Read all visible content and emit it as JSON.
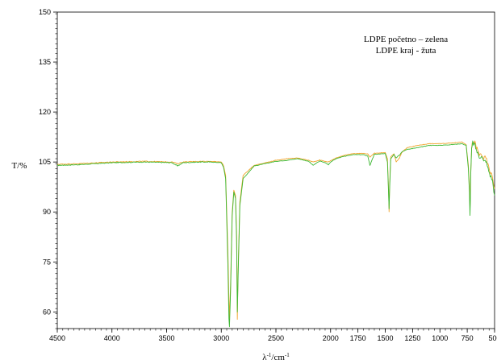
{
  "chart_data": {
    "type": "line",
    "title": "",
    "xlabel": "λ-1/cm-1",
    "xlabel_base": "λ",
    "xlabel_sup1": "-1",
    "xlabel_mid": "/cm",
    "xlabel_sup2": "-1",
    "ylabel": "T/%",
    "x_reversed": true,
    "xlim": [
      4500,
      500
    ],
    "ylim": [
      55,
      150
    ],
    "xticks": [
      4500,
      4000,
      3500,
      3000,
      2500,
      2000,
      1750,
      1500,
      1250,
      1000,
      750,
      500
    ],
    "yticks": [
      60,
      75,
      90,
      105,
      120,
      135,
      150
    ],
    "grid": false,
    "legend": [
      "LDPE početno – zelena",
      "LDPE kraj - žuta"
    ],
    "legend_position": "top-right",
    "series": [
      {
        "color": "#3cb832",
        "x": [
          4500,
          4300,
          4000,
          3700,
          3450,
          3400,
          3350,
          3200,
          3100,
          3000,
          2980,
          2960,
          2940,
          2930,
          2925,
          2915,
          2900,
          2885,
          2870,
          2860,
          2853,
          2845,
          2830,
          2800,
          2700,
          2500,
          2400,
          2300,
          2200,
          2160,
          2100,
          2050,
          2020,
          2000,
          1950,
          1900,
          1800,
          1700,
          1660,
          1640,
          1600,
          1500,
          1480,
          1470,
          1465,
          1460,
          1450,
          1420,
          1400,
          1380,
          1370,
          1350,
          1300,
          1200,
          1100,
          1000,
          900,
          800,
          760,
          740,
          730,
          725,
          722,
          718,
          710,
          700,
          680,
          660,
          640,
          620,
          600,
          580,
          560,
          540,
          520,
          500
        ],
        "y": [
          104,
          104.2,
          104.8,
          105,
          104.8,
          103.8,
          104.8,
          105,
          105,
          104.8,
          103.5,
          100,
          75,
          58,
          55.5,
          66,
          89,
          96,
          94,
          82,
          60,
          72,
          92,
          100,
          103.8,
          105.2,
          105.5,
          106,
          105.2,
          104,
          105.3,
          104.8,
          104.2,
          105,
          106,
          106.5,
          107.2,
          107.2,
          106.8,
          104,
          107.3,
          107.5,
          105,
          96,
          91,
          97,
          106,
          107.3,
          106.2,
          107,
          107,
          108,
          108.8,
          109.3,
          110,
          110,
          110.2,
          110.5,
          110,
          103,
          96,
          89,
          93,
          101,
          108.5,
          110.8,
          110,
          108,
          106.5,
          107,
          105,
          105.5,
          103,
          101,
          99.5,
          95
        ]
      },
      {
        "color": "#f0a52d",
        "x": [
          4500,
          4300,
          4000,
          3700,
          3450,
          3400,
          3350,
          3200,
          3100,
          3000,
          2980,
          2960,
          2940,
          2930,
          2925,
          2915,
          2900,
          2885,
          2870,
          2860,
          2853,
          2845,
          2830,
          2800,
          2700,
          2500,
          2400,
          2300,
          2200,
          2160,
          2100,
          2050,
          2020,
          2000,
          1950,
          1900,
          1800,
          1700,
          1660,
          1640,
          1600,
          1500,
          1480,
          1470,
          1465,
          1460,
          1450,
          1420,
          1400,
          1380,
          1370,
          1350,
          1300,
          1200,
          1100,
          1000,
          900,
          800,
          760,
          740,
          730,
          725,
          722,
          718,
          710,
          700,
          680,
          660,
          640,
          620,
          600,
          580,
          560,
          540,
          520,
          500
        ],
        "y": [
          104.3,
          104.5,
          105,
          105.2,
          105,
          104.5,
          105,
          105.2,
          105.2,
          105,
          104,
          101,
          79,
          64,
          58,
          68,
          90,
          96.5,
          95,
          84,
          57.8,
          74,
          93,
          101,
          104,
          105.5,
          106,
          106.2,
          105.5,
          105,
          105.6,
          105.2,
          105,
          105.4,
          106.2,
          106.8,
          107.5,
          107.6,
          107.4,
          106.5,
          107.6,
          107.8,
          106,
          97,
          90,
          98,
          106.5,
          107.5,
          105,
          105.8,
          106.2,
          107.8,
          109.3,
          110,
          110.5,
          110.5,
          110.7,
          111,
          110.2,
          104,
          97.5,
          91,
          94,
          102,
          109,
          111.2,
          110.8,
          109,
          107,
          107.5,
          106,
          106.3,
          104,
          102,
          100.5,
          97
        ]
      }
    ]
  }
}
